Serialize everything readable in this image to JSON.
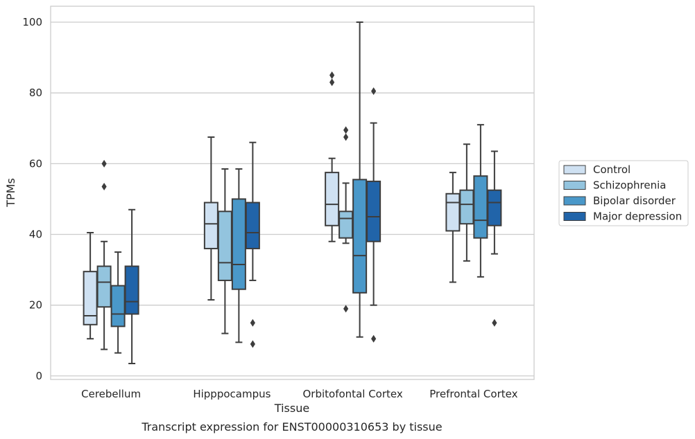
{
  "chart_data": {
    "type": "box",
    "xlabel": "Tissue",
    "ylabel": "TPMs",
    "caption": "Transcript expression for ENST00000310653 by tissue",
    "ylim": [
      -1,
      104.5
    ],
    "yticks": [
      0,
      20,
      40,
      60,
      80,
      100
    ],
    "grid": "horizontal",
    "legend_position": "right",
    "categories": [
      "Cerebellum",
      "Hipppocampus",
      "Orbitofontal Cortex",
      "Prefrontal Cortex"
    ],
    "series": [
      {
        "name": "Control",
        "color": "#cfe1f2",
        "boxes": [
          {
            "whisker_low": 10.5,
            "q1": 14.5,
            "median": 17,
            "q3": 29.5,
            "whisker_high": 40.5,
            "outliers": []
          },
          {
            "whisker_low": 21.5,
            "q1": 36,
            "median": 43,
            "q3": 49,
            "whisker_high": 67.5,
            "outliers": []
          },
          {
            "whisker_low": 38,
            "q1": 42.5,
            "median": 48.5,
            "q3": 57.5,
            "whisker_high": 61.5,
            "outliers": [
              83,
              85
            ]
          },
          {
            "whisker_low": 26.5,
            "q1": 41,
            "median": 49,
            "q3": 51.5,
            "whisker_high": 57.5,
            "outliers": []
          }
        ]
      },
      {
        "name": "Schizophrenia",
        "color": "#93c4de",
        "boxes": [
          {
            "whisker_low": 7.5,
            "q1": 19.5,
            "median": 26.5,
            "q3": 31,
            "whisker_high": 38,
            "outliers": [
              53.5,
              60
            ]
          },
          {
            "whisker_low": 12,
            "q1": 27,
            "median": 32,
            "q3": 46.5,
            "whisker_high": 58.5,
            "outliers": []
          },
          {
            "whisker_low": 37.5,
            "q1": 39,
            "median": 44.5,
            "q3": 46.5,
            "whisker_high": 54.5,
            "outliers": [
              19,
              67.5,
              69.5
            ]
          },
          {
            "whisker_low": 32.5,
            "q1": 43,
            "median": 48.5,
            "q3": 52.5,
            "whisker_high": 65.5,
            "outliers": []
          }
        ]
      },
      {
        "name": "Bipolar disorder",
        "color": "#4a98c9",
        "boxes": [
          {
            "whisker_low": 6.5,
            "q1": 14,
            "median": 17.5,
            "q3": 25.5,
            "whisker_high": 35,
            "outliers": []
          },
          {
            "whisker_low": 9.5,
            "q1": 24.5,
            "median": 31.5,
            "q3": 50,
            "whisker_high": 58.5,
            "outliers": []
          },
          {
            "whisker_low": 11,
            "q1": 23.5,
            "median": 34,
            "q3": 55.5,
            "whisker_high": 100,
            "outliers": []
          },
          {
            "whisker_low": 28,
            "q1": 39,
            "median": 44,
            "q3": 56.5,
            "whisker_high": 71,
            "outliers": []
          }
        ]
      },
      {
        "name": "Major depression",
        "color": "#2164a9",
        "boxes": [
          {
            "whisker_low": 3.5,
            "q1": 17.5,
            "median": 21,
            "q3": 31,
            "whisker_high": 47,
            "outliers": []
          },
          {
            "whisker_low": 27,
            "q1": 36,
            "median": 40.5,
            "q3": 49,
            "whisker_high": 66,
            "outliers": [
              9,
              15
            ]
          },
          {
            "whisker_low": 20,
            "q1": 38,
            "median": 45,
            "q3": 55,
            "whisker_high": 71.5,
            "outliers": [
              10.5,
              80.5
            ]
          },
          {
            "whisker_low": 34.5,
            "q1": 42.5,
            "median": 49,
            "q3": 52.5,
            "whisker_high": 63.5,
            "outliers": [
              15
            ]
          }
        ]
      }
    ]
  }
}
